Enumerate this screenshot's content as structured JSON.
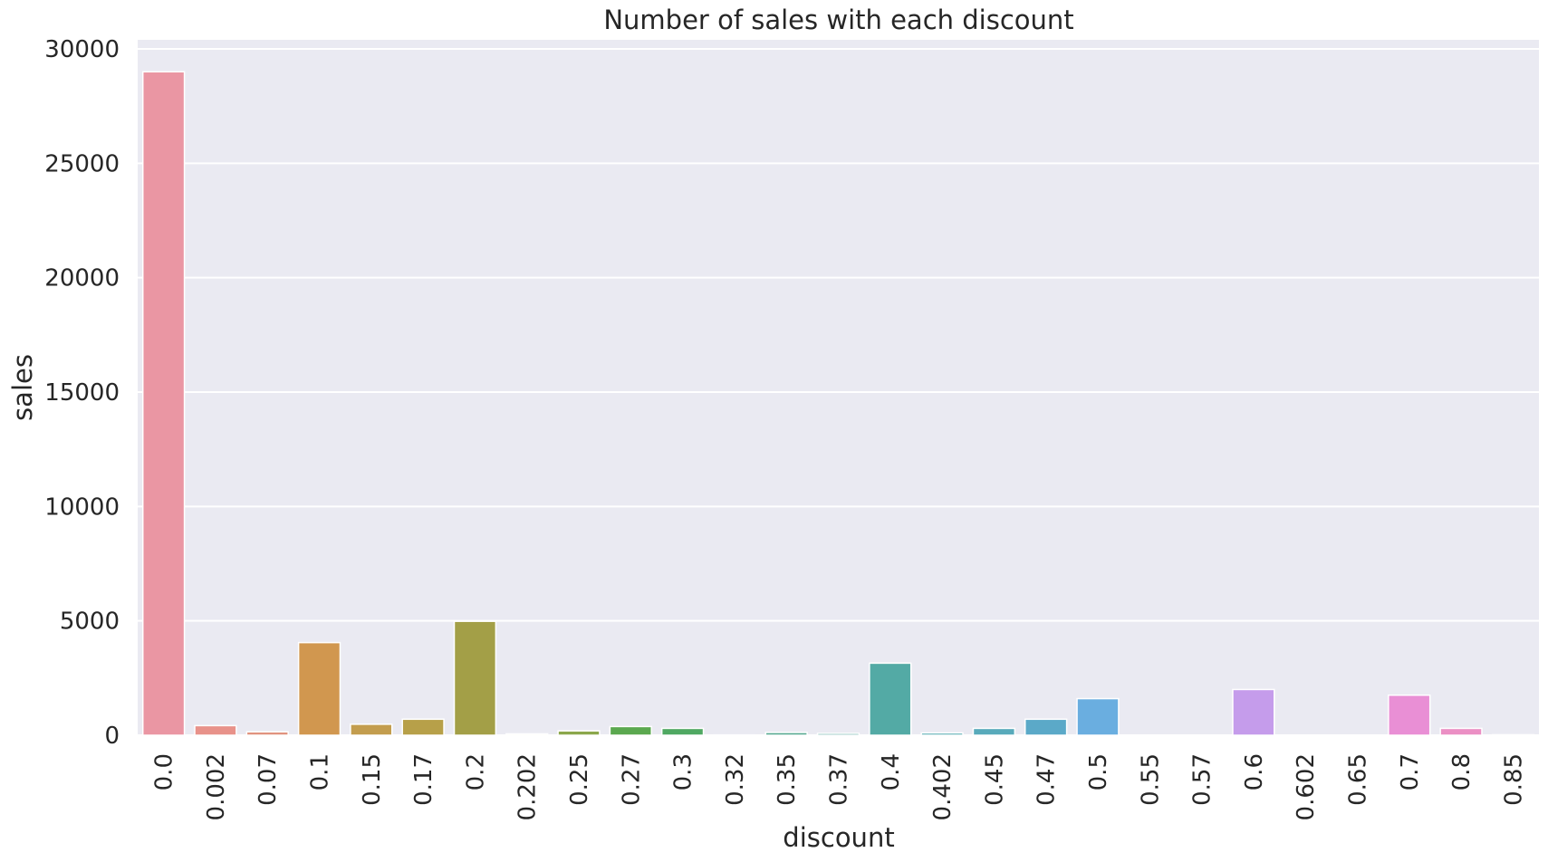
{
  "chart_data": {
    "type": "bar",
    "title": "Number of sales with each discount",
    "xlabel": "discount",
    "ylabel": "sales",
    "ylim": [
      0,
      30000
    ],
    "yticks": [
      0,
      5000,
      10000,
      15000,
      20000,
      25000,
      30000
    ],
    "grid": true,
    "categories": [
      "0.0",
      "0.002",
      "0.07",
      "0.1",
      "0.15",
      "0.17",
      "0.2",
      "0.202",
      "0.25",
      "0.27",
      "0.3",
      "0.32",
      "0.35",
      "0.37",
      "0.4",
      "0.402",
      "0.45",
      "0.47",
      "0.5",
      "0.55",
      "0.57",
      "0.6",
      "0.602",
      "0.65",
      "0.7",
      "0.8",
      "0.85"
    ],
    "values": [
      29000,
      420,
      150,
      4050,
      480,
      700,
      4980,
      60,
      190,
      380,
      300,
      15,
      120,
      80,
      3150,
      100,
      300,
      700,
      1600,
      10,
      10,
      2000,
      10,
      10,
      1750,
      300,
      20
    ],
    "colors": [
      "#ea96a3",
      "#e8928a",
      "#e0937f",
      "#d1974f",
      "#c39d4e",
      "#b7a049",
      "#a39f47",
      "#9ca547",
      "#8ba74b",
      "#5ba84f",
      "#4fa862",
      "#51a77f",
      "#52a78f",
      "#53a69c",
      "#53aaa5",
      "#55aab1",
      "#58aabb",
      "#5ba9c8",
      "#6aaee0",
      "#8fa8ea",
      "#ada3ea",
      "#c59ceb",
      "#d694e8",
      "#e28fe2",
      "#e98fd5",
      "#eb8fc4",
      "#eb91b3"
    ]
  }
}
